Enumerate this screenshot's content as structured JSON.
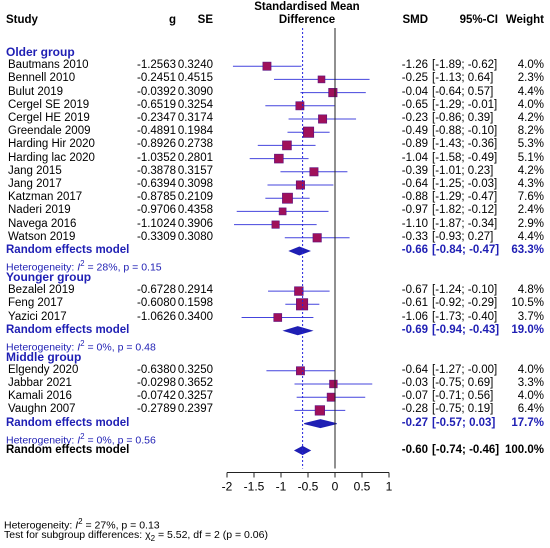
{
  "headers": {
    "study": "Study",
    "g": "g",
    "se": "SE",
    "plot_line1": "Standardised Mean",
    "plot_line2": "Difference",
    "smd": "SMD",
    "ci": "95%-CI",
    "weight": "Weight"
  },
  "groups": [
    {
      "name": "Older group",
      "studies": [
        {
          "study": "Bautmans 2010",
          "g": "-1.2563",
          "se": "0.3240",
          "smd": -1.26,
          "lo": -1.89,
          "hi": -0.62,
          "smd_txt": "-1.26",
          "ci_txt": "[-1.89; -0.62]",
          "w": 4.0,
          "w_txt": "4.0%"
        },
        {
          "study": "Bennell 2010",
          "g": "-0.2451",
          "se": "0.4515",
          "smd": -0.25,
          "lo": -1.13,
          "hi": 0.64,
          "smd_txt": "-0.25",
          "ci_txt": "[-1.13;  0.64]",
          "w": 2.3,
          "w_txt": "2.3%"
        },
        {
          "study": "Bulut  2019",
          "g": "-0.0392",
          "se": "0.3090",
          "smd": -0.04,
          "lo": -0.64,
          "hi": 0.57,
          "smd_txt": "-0.04",
          "ci_txt": "[-0.64;  0.57]",
          "w": 4.4,
          "w_txt": "4.4%"
        },
        {
          "study": "Cergel SE 2019",
          "g": "-0.6519",
          "se": "0.3254",
          "smd": -0.65,
          "lo": -1.29,
          "hi": -0.01,
          "smd_txt": "-0.65",
          "ci_txt": "[-1.29; -0.01]",
          "w": 4.0,
          "w_txt": "4.0%"
        },
        {
          "study": "Cergel HE 2019",
          "g": "-0.2347",
          "se": "0.3174",
          "smd": -0.23,
          "lo": -0.86,
          "hi": 0.39,
          "smd_txt": "-0.23",
          "ci_txt": "[-0.86;  0.39]",
          "w": 4.2,
          "w_txt": "4.2%"
        },
        {
          "study": "Greendale 2009",
          "g": "-0.4891",
          "se": "0.1984",
          "smd": -0.49,
          "lo": -0.88,
          "hi": -0.1,
          "smd_txt": "-0.49",
          "ci_txt": "[-0.88; -0.10]",
          "w": 8.2,
          "w_txt": "8.2%"
        },
        {
          "study": "Harding  Hir 2020",
          "g": "-0.8926",
          "se": "0.2738",
          "smd": -0.89,
          "lo": -1.43,
          "hi": -0.36,
          "smd_txt": "-0.89",
          "ci_txt": "[-1.43; -0.36]",
          "w": 5.3,
          "w_txt": "5.3%"
        },
        {
          "study": "Harding  lac 2020",
          "g": "-1.0352",
          "se": "0.2801",
          "smd": -1.04,
          "lo": -1.58,
          "hi": -0.49,
          "smd_txt": "-1.04",
          "ci_txt": "[-1.58; -0.49]",
          "w": 5.1,
          "w_txt": "5.1%"
        },
        {
          "study": "Jang 2015",
          "g": "-0.3878",
          "se": "0.3157",
          "smd": -0.39,
          "lo": -1.01,
          "hi": 0.23,
          "smd_txt": "-0.39",
          "ci_txt": "[-1.01;  0.23]",
          "w": 4.2,
          "w_txt": "4.2%"
        },
        {
          "study": "Jang 2017",
          "g": "-0.6394",
          "se": "0.3098",
          "smd": -0.64,
          "lo": -1.25,
          "hi": -0.03,
          "smd_txt": "-0.64",
          "ci_txt": "[-1.25; -0.03]",
          "w": 4.3,
          "w_txt": "4.3%"
        },
        {
          "study": "Katzman 2017",
          "g": "-0.8785",
          "se": "0.2109",
          "smd": -0.88,
          "lo": -1.29,
          "hi": -0.47,
          "smd_txt": "-0.88",
          "ci_txt": "[-1.29; -0.47]",
          "w": 7.6,
          "w_txt": "7.6%"
        },
        {
          "study": "Naderi 2019",
          "g": "-0.9706",
          "se": "0.4358",
          "smd": -0.97,
          "lo": -1.82,
          "hi": -0.12,
          "smd_txt": "-0.97",
          "ci_txt": "[-1.82; -0.12]",
          "w": 2.4,
          "w_txt": "2.4%"
        },
        {
          "study": "Navega 2016",
          "g": "-1.1024",
          "se": "0.3906",
          "smd": -1.1,
          "lo": -1.87,
          "hi": -0.34,
          "smd_txt": "-1.10",
          "ci_txt": "[-1.87; -0.34]",
          "w": 2.9,
          "w_txt": "2.9%"
        },
        {
          "study": "Watson 2019",
          "g": "-0.3309",
          "se": "0.3080",
          "smd": -0.33,
          "lo": -0.93,
          "hi": 0.27,
          "smd_txt": "-0.33",
          "ci_txt": "[-0.93;  0.27]",
          "w": 4.4,
          "w_txt": "4.4%"
        }
      ],
      "pooled": {
        "label": "Random effects model",
        "smd": -0.66,
        "lo": -0.84,
        "hi": -0.47,
        "smd_txt": "-0.66",
        "ci_txt": "[-0.84; -0.47]",
        "w_txt": "63.3%"
      },
      "het_prefix": "Heterogeneity: ",
      "het_i2": "I",
      "het_rest": " = 28%, p = 0.15"
    },
    {
      "name": "Younger group",
      "studies": [
        {
          "study": "Bezalel 2019",
          "g": "-0.6728",
          "se": "0.2914",
          "smd": -0.67,
          "lo": -1.24,
          "hi": -0.1,
          "smd_txt": "-0.67",
          "ci_txt": "[-1.24; -0.10]",
          "w": 4.8,
          "w_txt": "4.8%"
        },
        {
          "study": "Feng 2017",
          "g": "-0.6080",
          "se": "0.1598",
          "smd": -0.61,
          "lo": -0.92,
          "hi": -0.29,
          "smd_txt": "-0.61",
          "ci_txt": "[-0.92; -0.29]",
          "w": 10.5,
          "w_txt": "10.5%"
        },
        {
          "study": "Yazici 2017",
          "g": "-1.0626",
          "se": "0.3400",
          "smd": -1.06,
          "lo": -1.73,
          "hi": -0.4,
          "smd_txt": "-1.06",
          "ci_txt": "[-1.73; -0.40]",
          "w": 3.7,
          "w_txt": "3.7%"
        }
      ],
      "pooled": {
        "label": "Random effects model",
        "smd": -0.69,
        "lo": -0.94,
        "hi": -0.43,
        "smd_txt": "-0.69",
        "ci_txt": "[-0.94; -0.43]",
        "w_txt": "19.0%"
      },
      "het_prefix": "Heterogeneity: ",
      "het_i2": "I",
      "het_rest": " = 0%, p = 0.48"
    },
    {
      "name": "Middle group",
      "studies": [
        {
          "study": "Elgendy 2020",
          "g": "-0.6380",
          "se": "0.3250",
          "smd": -0.64,
          "lo": -1.27,
          "hi": -0.0,
          "smd_txt": "-0.64",
          "ci_txt": "[-1.27; -0.00]",
          "w": 4.0,
          "w_txt": "4.0%"
        },
        {
          "study": "Jabbar 2021",
          "g": "-0.0298",
          "se": "0.3652",
          "smd": -0.03,
          "lo": -0.75,
          "hi": 0.69,
          "smd_txt": "-0.03",
          "ci_txt": "[-0.75;  0.69]",
          "w": 3.3,
          "w_txt": "3.3%"
        },
        {
          "study": "Kamali 2016",
          "g": "-0.0742",
          "se": "0.3257",
          "smd": -0.07,
          "lo": -0.71,
          "hi": 0.56,
          "smd_txt": "-0.07",
          "ci_txt": "[-0.71;  0.56]",
          "w": 4.0,
          "w_txt": "4.0%"
        },
        {
          "study": "Vaughn 2007",
          "g": "-0.2789",
          "se": "0.2397",
          "smd": -0.28,
          "lo": -0.75,
          "hi": 0.19,
          "smd_txt": "-0.28",
          "ci_txt": "[-0.75;  0.19]",
          "w": 6.4,
          "w_txt": "6.4%"
        }
      ],
      "pooled": {
        "label": "Random effects model",
        "smd": -0.27,
        "lo": -0.57,
        "hi": 0.03,
        "smd_txt": "-0.27",
        "ci_txt": "[-0.57;  0.03]",
        "w_txt": "17.7%"
      },
      "het_prefix": "Heterogeneity: ",
      "het_i2": "I",
      "het_rest": " = 0%, p = 0.56"
    }
  ],
  "overall": {
    "label": "Random effects model",
    "smd": -0.6,
    "lo": -0.74,
    "hi": -0.46,
    "smd_txt": "-0.60",
    "ci_txt": "[-0.74; -0.46]",
    "w_txt": "100.0%"
  },
  "footer": {
    "het_prefix": "Heterogeneity: ",
    "het_i2": "I",
    "het_rest": " = 27%, p = 0.13",
    "subgroup_prefix": "Test for subgroup differences: ",
    "chi": "χ",
    "subgroup_rest": " = 5.52, df = 2 (p = 0.06)",
    "sup2": "2",
    "sub2": "2"
  },
  "colors": {
    "square": "#a0105a",
    "square_stroke": "#5a1080",
    "ci_line": "#4444dd",
    "diamond": "#1f1fb4",
    "pooled_line": "#2222dd",
    "text_blue": "#1f1fb4"
  },
  "chart_data": {
    "type": "forest",
    "xlim": [
      -2,
      1
    ],
    "xticks": [
      -2,
      -1.5,
      -1,
      -0.5,
      0,
      0.5,
      1
    ],
    "xtick_labels": [
      "-2",
      "-1.5",
      "-1",
      "-0.5",
      "0",
      "0.5",
      "1"
    ],
    "reference_line": 0,
    "pooled_line": -0.6
  }
}
